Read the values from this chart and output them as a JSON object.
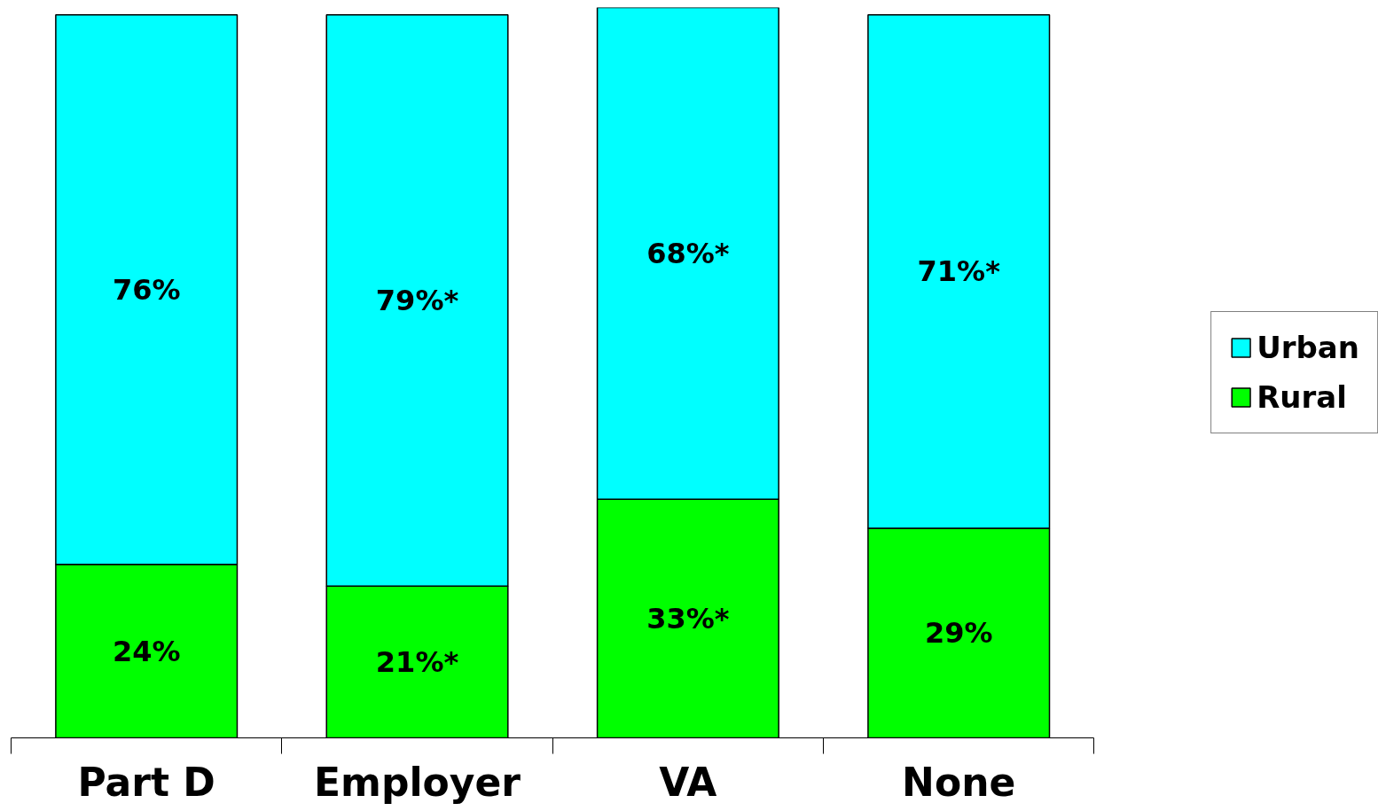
{
  "chart_data": {
    "type": "bar",
    "stacked": true,
    "categories": [
      "Part D",
      "Employer",
      "VA",
      "None"
    ],
    "series": [
      {
        "name": "Rural",
        "color": "#00ff00",
        "values": [
          24,
          21,
          33,
          29
        ],
        "value_labels": [
          "24%",
          "21%*",
          "33%*",
          "29%"
        ]
      },
      {
        "name": "Urban",
        "color": "#00ffff",
        "values": [
          76,
          79,
          68,
          71
        ],
        "value_labels": [
          "76%",
          "79%*",
          "68%*",
          "71%*"
        ]
      }
    ],
    "legend": "right",
    "grid": false
  }
}
